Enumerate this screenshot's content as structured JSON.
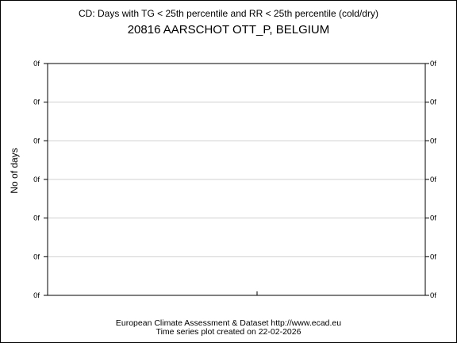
{
  "chart_data": {
    "type": "line",
    "title": "CD: Days with TG < 25th percentile and RR < 25th percentile (cold/dry)",
    "subtitle": "20816 AARSCHOT OTT_P, BELGIUM",
    "ylabel": "No of days",
    "xlabel": "",
    "y_tick_labels": [
      "0f",
      "0f",
      "0f",
      "0f",
      "0f",
      "0f",
      "0f"
    ],
    "grid": true,
    "series": [],
    "footer": {
      "line1": "European Climate Assessment & Dataset  http://www.ecad.eu",
      "line2": "Time series plot created on 22-02-2026"
    }
  }
}
